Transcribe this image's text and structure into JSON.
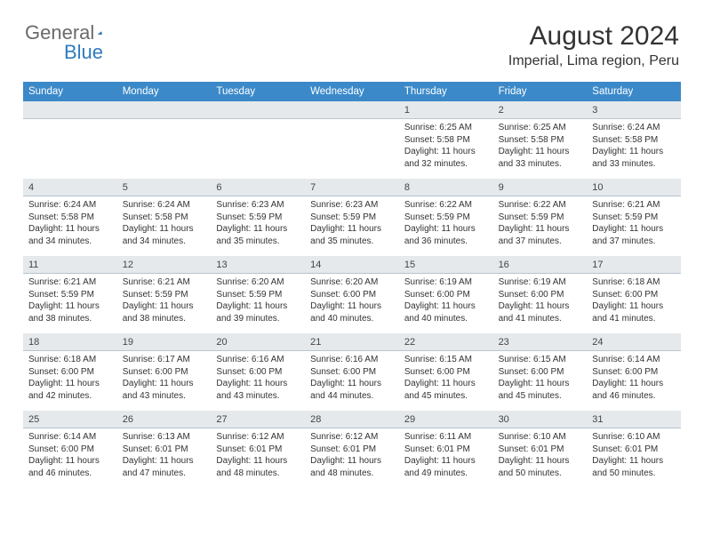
{
  "logo": {
    "text1": "General",
    "text2": "Blue"
  },
  "title": "August 2024",
  "location": "Imperial, Lima region, Peru",
  "colors": {
    "header_bg": "#3b89c9",
    "header_fg": "#ffffff",
    "daynum_bg": "#e5e9ec",
    "text": "#333333",
    "logo_gray": "#6a6a6a",
    "logo_blue": "#2f7bbf"
  },
  "weekdays": [
    "Sunday",
    "Monday",
    "Tuesday",
    "Wednesday",
    "Thursday",
    "Friday",
    "Saturday"
  ],
  "weeks": [
    {
      "nums": [
        "",
        "",
        "",
        "",
        "1",
        "2",
        "3"
      ],
      "data": [
        "",
        "",
        "",
        "",
        "Sunrise: 6:25 AM\nSunset: 5:58 PM\nDaylight: 11 hours and 32 minutes.",
        "Sunrise: 6:25 AM\nSunset: 5:58 PM\nDaylight: 11 hours and 33 minutes.",
        "Sunrise: 6:24 AM\nSunset: 5:58 PM\nDaylight: 11 hours and 33 minutes."
      ]
    },
    {
      "nums": [
        "4",
        "5",
        "6",
        "7",
        "8",
        "9",
        "10"
      ],
      "data": [
        "Sunrise: 6:24 AM\nSunset: 5:58 PM\nDaylight: 11 hours and 34 minutes.",
        "Sunrise: 6:24 AM\nSunset: 5:58 PM\nDaylight: 11 hours and 34 minutes.",
        "Sunrise: 6:23 AM\nSunset: 5:59 PM\nDaylight: 11 hours and 35 minutes.",
        "Sunrise: 6:23 AM\nSunset: 5:59 PM\nDaylight: 11 hours and 35 minutes.",
        "Sunrise: 6:22 AM\nSunset: 5:59 PM\nDaylight: 11 hours and 36 minutes.",
        "Sunrise: 6:22 AM\nSunset: 5:59 PM\nDaylight: 11 hours and 37 minutes.",
        "Sunrise: 6:21 AM\nSunset: 5:59 PM\nDaylight: 11 hours and 37 minutes."
      ]
    },
    {
      "nums": [
        "11",
        "12",
        "13",
        "14",
        "15",
        "16",
        "17"
      ],
      "data": [
        "Sunrise: 6:21 AM\nSunset: 5:59 PM\nDaylight: 11 hours and 38 minutes.",
        "Sunrise: 6:21 AM\nSunset: 5:59 PM\nDaylight: 11 hours and 38 minutes.",
        "Sunrise: 6:20 AM\nSunset: 5:59 PM\nDaylight: 11 hours and 39 minutes.",
        "Sunrise: 6:20 AM\nSunset: 6:00 PM\nDaylight: 11 hours and 40 minutes.",
        "Sunrise: 6:19 AM\nSunset: 6:00 PM\nDaylight: 11 hours and 40 minutes.",
        "Sunrise: 6:19 AM\nSunset: 6:00 PM\nDaylight: 11 hours and 41 minutes.",
        "Sunrise: 6:18 AM\nSunset: 6:00 PM\nDaylight: 11 hours and 41 minutes."
      ]
    },
    {
      "nums": [
        "18",
        "19",
        "20",
        "21",
        "22",
        "23",
        "24"
      ],
      "data": [
        "Sunrise: 6:18 AM\nSunset: 6:00 PM\nDaylight: 11 hours and 42 minutes.",
        "Sunrise: 6:17 AM\nSunset: 6:00 PM\nDaylight: 11 hours and 43 minutes.",
        "Sunrise: 6:16 AM\nSunset: 6:00 PM\nDaylight: 11 hours and 43 minutes.",
        "Sunrise: 6:16 AM\nSunset: 6:00 PM\nDaylight: 11 hours and 44 minutes.",
        "Sunrise: 6:15 AM\nSunset: 6:00 PM\nDaylight: 11 hours and 45 minutes.",
        "Sunrise: 6:15 AM\nSunset: 6:00 PM\nDaylight: 11 hours and 45 minutes.",
        "Sunrise: 6:14 AM\nSunset: 6:00 PM\nDaylight: 11 hours and 46 minutes."
      ]
    },
    {
      "nums": [
        "25",
        "26",
        "27",
        "28",
        "29",
        "30",
        "31"
      ],
      "data": [
        "Sunrise: 6:14 AM\nSunset: 6:00 PM\nDaylight: 11 hours and 46 minutes.",
        "Sunrise: 6:13 AM\nSunset: 6:01 PM\nDaylight: 11 hours and 47 minutes.",
        "Sunrise: 6:12 AM\nSunset: 6:01 PM\nDaylight: 11 hours and 48 minutes.",
        "Sunrise: 6:12 AM\nSunset: 6:01 PM\nDaylight: 11 hours and 48 minutes.",
        "Sunrise: 6:11 AM\nSunset: 6:01 PM\nDaylight: 11 hours and 49 minutes.",
        "Sunrise: 6:10 AM\nSunset: 6:01 PM\nDaylight: 11 hours and 50 minutes.",
        "Sunrise: 6:10 AM\nSunset: 6:01 PM\nDaylight: 11 hours and 50 minutes."
      ]
    }
  ]
}
